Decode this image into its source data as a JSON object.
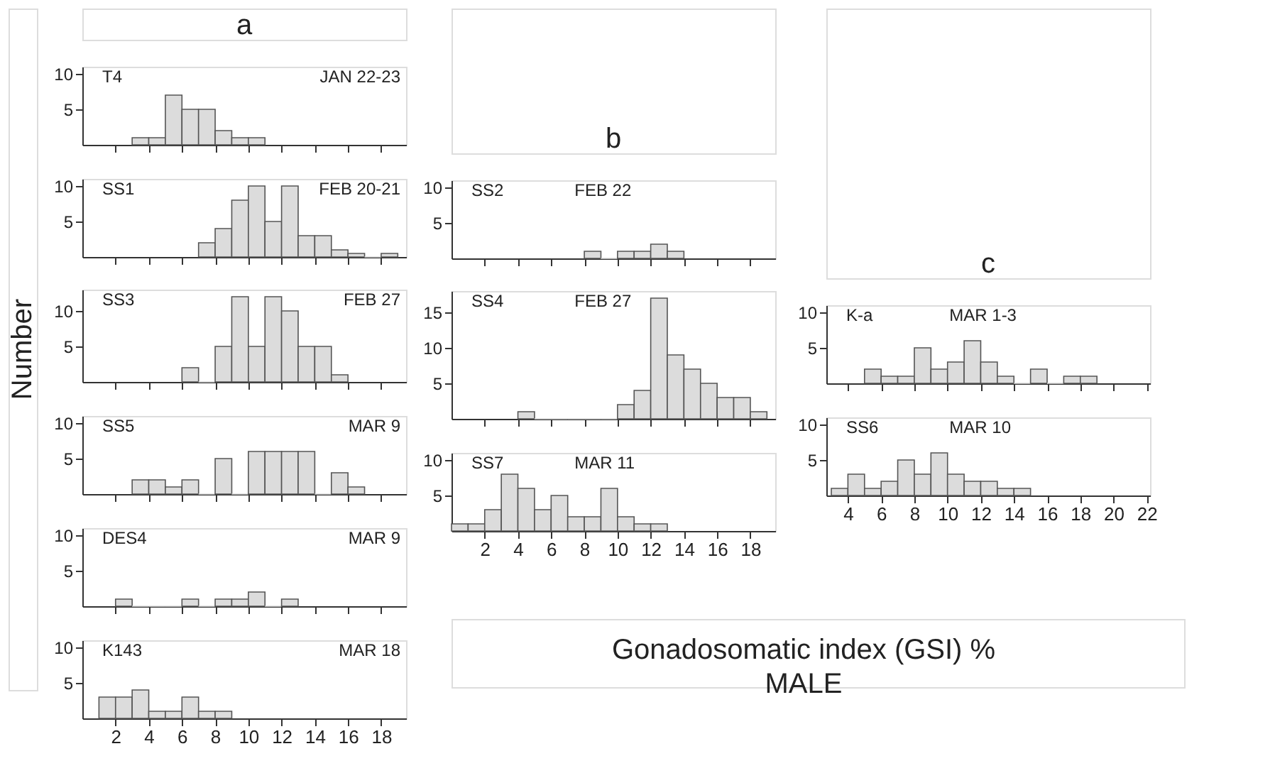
{
  "chart_data": [
    {
      "type": "histogram",
      "title": "a",
      "annotations": [
        "T4",
        "JAN 22-23"
      ],
      "bins": [
        3,
        4,
        5,
        6,
        7,
        8,
        9,
        10,
        11
      ],
      "values": [
        1,
        1,
        7,
        5,
        5,
        2,
        1,
        1
      ],
      "color": "#dcdcdc",
      "xlim": [
        0,
        19.5
      ],
      "xticks": [
        2,
        4,
        6,
        8,
        10,
        12,
        14,
        16,
        18
      ],
      "ylim": [
        0,
        11
      ],
      "yticks": [
        5,
        10
      ],
      "tick_labels": "y"
    },
    {
      "type": "histogram",
      "annotations": [
        "SS1",
        "FEB 20-21"
      ],
      "bins": [
        7,
        8,
        9,
        10,
        11,
        12,
        13,
        14,
        15,
        16,
        17,
        18,
        19
      ],
      "values": [
        2,
        4,
        8,
        10,
        5,
        10,
        3,
        3,
        1,
        0.5,
        0,
        0.5
      ],
      "color": "#dcdcdc",
      "xlim": [
        0,
        19.5
      ],
      "xticks": [
        2,
        4,
        6,
        8,
        10,
        12,
        14,
        16,
        18
      ],
      "ylim": [
        0,
        11
      ],
      "yticks": [
        5,
        10
      ],
      "tick_labels": "y"
    },
    {
      "type": "histogram",
      "annotations": [
        "SS3",
        "FEB 27"
      ],
      "bins": [
        6,
        7,
        8,
        9,
        10,
        11,
        12,
        13,
        14,
        15,
        16
      ],
      "values": [
        2,
        0,
        5,
        12,
        5,
        12,
        10,
        5,
        5,
        1
      ],
      "color": "#dcdcdc",
      "xlim": [
        0,
        19.5
      ],
      "xticks": [
        2,
        4,
        6,
        8,
        10,
        12,
        14,
        16,
        18
      ],
      "ylim": [
        0,
        13
      ],
      "yticks": [
        5,
        10
      ],
      "tick_labels": "y"
    },
    {
      "type": "histogram",
      "annotations": [
        "SS5",
        "MAR 9"
      ],
      "bins": [
        3,
        4,
        5,
        6,
        7,
        8,
        9,
        10,
        11,
        12,
        13,
        14,
        15,
        16,
        17
      ],
      "values": [
        2,
        2,
        1,
        2,
        0,
        5,
        0,
        6,
        6,
        6,
        6,
        0,
        3,
        1
      ],
      "color": "#dcdcdc",
      "xlim": [
        0,
        19.5
      ],
      "xticks": [
        2,
        4,
        6,
        8,
        10,
        12,
        14,
        16,
        18
      ],
      "ylim": [
        0,
        11
      ],
      "yticks": [
        5,
        10
      ],
      "tick_labels": "y"
    },
    {
      "type": "histogram",
      "annotations": [
        "DES4",
        "MAR 9"
      ],
      "bins": [
        2,
        3,
        4,
        5,
        6,
        7,
        8,
        9,
        10,
        11,
        12,
        13
      ],
      "values": [
        1,
        0,
        0,
        0,
        1,
        0,
        1,
        1,
        2,
        0,
        1
      ],
      "color": "#dcdcdc",
      "xlim": [
        0,
        19.5
      ],
      "xticks": [
        2,
        4,
        6,
        8,
        10,
        12,
        14,
        16,
        18
      ],
      "ylim": [
        0,
        11
      ],
      "yticks": [
        5,
        10
      ],
      "tick_labels": "y"
    },
    {
      "type": "histogram",
      "annotations": [
        "K143",
        "MAR 18"
      ],
      "bins": [
        1,
        2,
        3,
        4,
        5,
        6,
        7,
        8,
        9
      ],
      "values": [
        3,
        3,
        4,
        1,
        1,
        3,
        1,
        1
      ],
      "color": "#dcdcdc",
      "xlim": [
        0,
        19.5
      ],
      "xticks": [
        2,
        4,
        6,
        8,
        10,
        12,
        14,
        16,
        18
      ],
      "ylim": [
        0,
        11
      ],
      "yticks": [
        5,
        10
      ]
    },
    {
      "type": "histogram",
      "title": "b",
      "annotations": [
        "SS2",
        "FEB 22"
      ],
      "bins": [
        8,
        9,
        10,
        11,
        12,
        13,
        14
      ],
      "values": [
        1,
        0,
        1,
        1,
        2,
        1
      ],
      "color": "#dcdcdc",
      "xlim": [
        0,
        19.5
      ],
      "xticks": [
        2,
        4,
        6,
        8,
        10,
        12,
        14,
        16,
        18
      ],
      "ylim": [
        0,
        11
      ],
      "yticks": [
        5,
        10
      ],
      "tick_labels": "y"
    },
    {
      "type": "histogram",
      "annotations": [
        "SS4",
        "FEB 27"
      ],
      "bins": [
        4,
        5,
        6,
        7,
        8,
        9,
        10,
        11,
        12,
        13,
        14,
        15,
        16,
        17,
        18,
        19
      ],
      "values": [
        1,
        0,
        0,
        0,
        0,
        0,
        2,
        4,
        17,
        9,
        7,
        5,
        3,
        3,
        1
      ],
      "color": "#dcdcdc",
      "xlim": [
        0,
        19.5
      ],
      "xticks": [
        2,
        4,
        6,
        8,
        10,
        12,
        14,
        16,
        18
      ],
      "ylim": [
        0,
        18
      ],
      "yticks": [
        5,
        10,
        15
      ],
      "tick_labels": "y"
    },
    {
      "type": "histogram",
      "annotations": [
        "SS7",
        "MAR 11"
      ],
      "bins": [
        0,
        1,
        2,
        3,
        4,
        5,
        6,
        7,
        8,
        9,
        10,
        11,
        12,
        13
      ],
      "values": [
        1,
        1,
        3,
        8,
        6,
        3,
        5,
        2,
        2,
        6,
        2,
        1,
        1
      ],
      "color": "#dcdcdc",
      "xlim": [
        0,
        19.5
      ],
      "xticks": [
        2,
        4,
        6,
        8,
        10,
        12,
        14,
        16,
        18
      ],
      "ylim": [
        0,
        11
      ],
      "yticks": [
        5,
        10
      ]
    },
    {
      "type": "histogram",
      "title": "c",
      "annotations": [
        "K-a",
        "MAR 1-3"
      ],
      "bins": [
        5,
        6,
        7,
        8,
        9,
        10,
        11,
        12,
        13,
        14,
        15,
        16,
        17,
        18,
        19
      ],
      "values": [
        2,
        1,
        1,
        5,
        2,
        3,
        6,
        3,
        1,
        0,
        2,
        0,
        1,
        1
      ],
      "color": "#dcdcdc",
      "xlim": [
        2.7,
        22.2
      ],
      "xticks": [
        4,
        6,
        8,
        10,
        12,
        14,
        16,
        18,
        20,
        22
      ],
      "ylim": [
        0,
        11
      ],
      "yticks": [
        5,
        10
      ],
      "tick_labels": "y"
    },
    {
      "type": "histogram",
      "annotations": [
        "SS6",
        "MAR 10"
      ],
      "bins": [
        3,
        4,
        5,
        6,
        7,
        8,
        9,
        10,
        11,
        12,
        13,
        14,
        15
      ],
      "values": [
        1,
        3,
        1,
        2,
        5,
        3,
        6,
        3,
        2,
        2,
        1,
        1
      ],
      "color": "#dcdcdc",
      "xlim": [
        2.7,
        22.2
      ],
      "xticks": [
        4,
        6,
        8,
        10,
        12,
        14,
        16,
        18,
        20,
        22
      ],
      "ylim": [
        0,
        11
      ],
      "yticks": [
        5,
        10
      ]
    },
    {
      "type": "other",
      "ylabel": "Number",
      "xlabel": "Gonadosomatic index (GSI) %",
      "annotations": [
        "MALE"
      ]
    }
  ]
}
